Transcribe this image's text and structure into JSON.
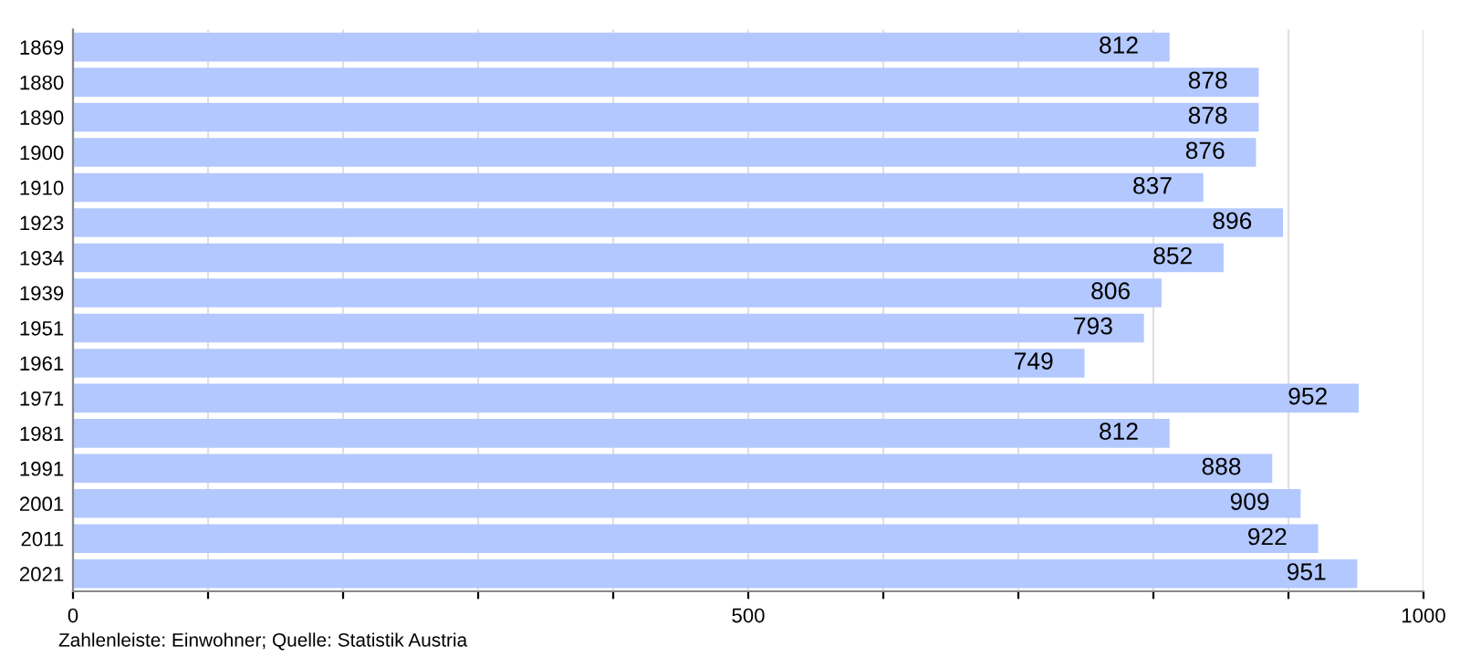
{
  "chart_data": {
    "type": "bar",
    "orientation": "horizontal",
    "categories": [
      "1869",
      "1880",
      "1890",
      "1900",
      "1910",
      "1923",
      "1934",
      "1939",
      "1951",
      "1961",
      "1971",
      "1981",
      "1991",
      "2001",
      "2011",
      "2021"
    ],
    "values": [
      812,
      878,
      878,
      876,
      837,
      896,
      852,
      806,
      793,
      749,
      952,
      812,
      888,
      909,
      922,
      951
    ],
    "color": "#b3c8fe",
    "data_labels": true,
    "xlim": [
      0,
      1000
    ],
    "xticks": [
      0,
      {
        "value": 100,
        "label": null
      },
      {
        "value": 200,
        "label": null
      },
      {
        "value": 300,
        "label": null
      },
      {
        "value": 400,
        "label": null
      },
      500,
      {
        "value": 600,
        "label": null
      },
      {
        "value": 700,
        "label": null
      },
      {
        "value": 800,
        "label": null
      },
      {
        "value": 900,
        "label": null
      },
      1000
    ],
    "grid": "x",
    "annotations": [
      "Zahlenleiste: Einwohner; Quelle: Statistik Austria"
    ]
  }
}
